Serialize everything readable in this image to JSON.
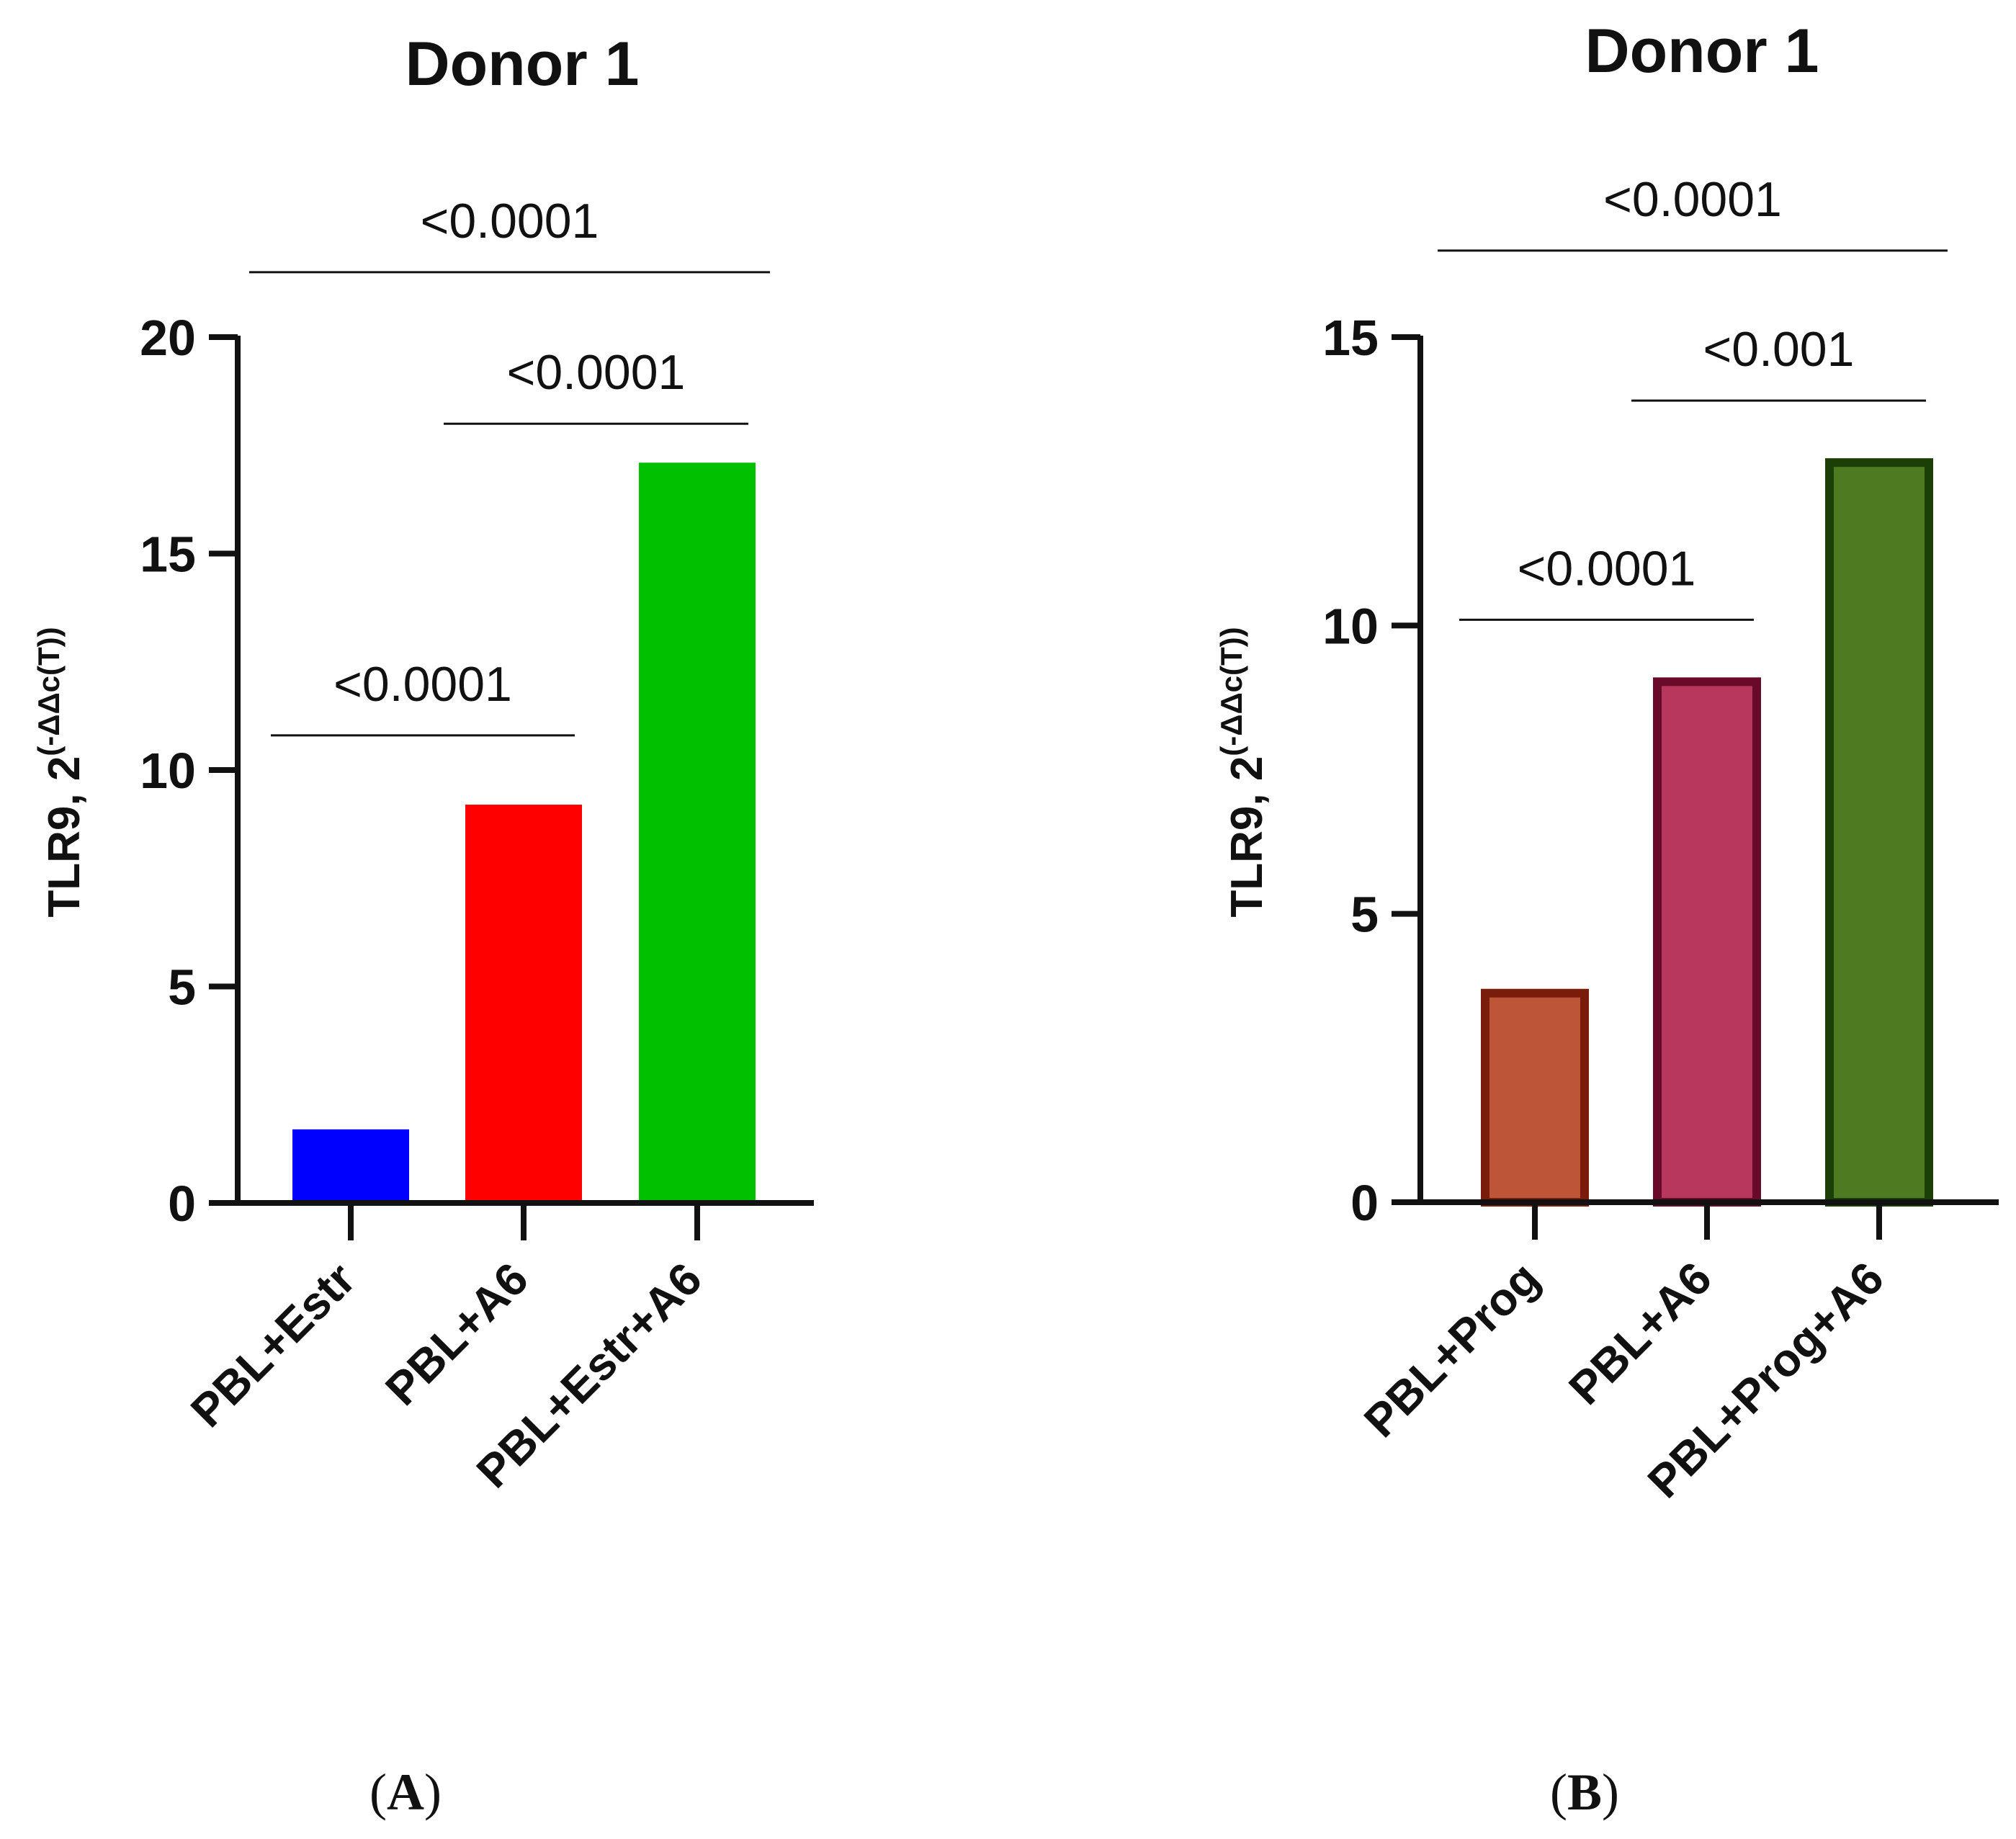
{
  "chart_data": [
    {
      "type": "bar",
      "panel_label": {
        "open": "(",
        "letter": "A",
        "close": ")"
      },
      "title": "Donor 1",
      "ylabel": {
        "base": "TLR9, 2",
        "sup": "(-ΔΔc(T))"
      },
      "ylim": [
        0,
        20
      ],
      "yticks": [
        0,
        5,
        10,
        15,
        20
      ],
      "categories": [
        "PBL+Estr",
        "PBL+A6",
        "PBL+Estr+A6"
      ],
      "values": [
        1.7,
        9.2,
        17.1
      ],
      "colors": [
        "#0000ff",
        "#ff0000",
        "#00c000"
      ],
      "edge_colors": [
        null,
        null,
        null
      ],
      "significance": [
        {
          "from": 0,
          "to": 1,
          "label": "<0.0001",
          "y": 10.8
        },
        {
          "from": 1,
          "to": 2,
          "label": "<0.0001",
          "y": 18.0
        },
        {
          "from": 0,
          "to": 2,
          "label": "<0.0001",
          "y": 21.5
        }
      ],
      "grid": false
    },
    {
      "type": "bar",
      "panel_label": {
        "open": "(",
        "letter": "B",
        "close": ")"
      },
      "title": "Donor 1",
      "ylabel": {
        "base": "TLR9, 2",
        "sup": "(-ΔΔc(T))"
      },
      "ylim": [
        0,
        15
      ],
      "yticks": [
        0,
        5,
        10,
        15
      ],
      "categories": [
        "PBL+Prog",
        "PBL+A6",
        "PBL+Prog+A6"
      ],
      "values": [
        3.7,
        9.1,
        12.9
      ],
      "colors": [
        "#bd5539",
        "#b7385c",
        "#4e7a21"
      ],
      "edge_colors": [
        "#7a1c0b",
        "#6a0a2a",
        "#1c3f08"
      ],
      "significance": [
        {
          "from": 0,
          "to": 1,
          "label": "<0.0001",
          "y": 10.1
        },
        {
          "from": 1,
          "to": 2,
          "label": "<0.001",
          "y": 13.9
        },
        {
          "from": 0,
          "to": 2,
          "label": "<0.0001",
          "y": 16.5
        }
      ],
      "grid": false
    }
  ]
}
